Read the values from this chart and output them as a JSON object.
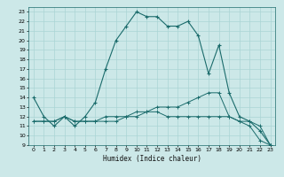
{
  "xlabel": "Humidex (Indice chaleur)",
  "xlim": [
    -0.5,
    23.5
  ],
  "ylim": [
    9,
    23.5
  ],
  "yticks": [
    9,
    10,
    11,
    12,
    13,
    14,
    15,
    16,
    17,
    18,
    19,
    20,
    21,
    22,
    23
  ],
  "xticks": [
    0,
    1,
    2,
    3,
    4,
    5,
    6,
    7,
    8,
    9,
    10,
    11,
    12,
    13,
    14,
    15,
    16,
    17,
    18,
    19,
    20,
    21,
    22,
    23
  ],
  "bg_color": "#cce8e8",
  "line_color": "#1a6b6b",
  "grid_color": "#aad4d4",
  "line1_x": [
    0,
    1,
    2,
    3,
    4,
    5,
    6,
    7,
    8,
    9,
    10,
    11,
    12,
    13,
    14,
    15,
    16,
    17,
    18,
    19,
    20,
    21,
    22,
    23
  ],
  "line1_y": [
    14,
    12,
    11,
    12,
    11,
    12,
    13.5,
    17,
    20,
    21.5,
    23,
    22.5,
    22.5,
    21.5,
    21.5,
    22,
    20.5,
    16.5,
    19.5,
    14.5,
    12,
    11.5,
    10.5,
    9
  ],
  "line2_x": [
    0,
    1,
    2,
    3,
    4,
    5,
    6,
    7,
    8,
    9,
    10,
    11,
    12,
    13,
    14,
    15,
    16,
    17,
    18,
    19,
    20,
    21,
    22,
    23
  ],
  "line2_y": [
    11.5,
    11.5,
    11.5,
    12,
    11.5,
    11.5,
    11.5,
    11.5,
    11.5,
    12,
    12,
    12.5,
    13,
    13,
    13,
    13.5,
    14,
    14.5,
    14.5,
    12,
    11.5,
    11.5,
    11,
    9
  ],
  "line3_x": [
    0,
    1,
    2,
    3,
    4,
    5,
    6,
    7,
    8,
    9,
    10,
    11,
    12,
    13,
    14,
    15,
    16,
    17,
    18,
    19,
    20,
    21,
    22,
    23
  ],
  "line3_y": [
    11.5,
    11.5,
    11.5,
    12,
    11.5,
    11.5,
    11.5,
    12,
    12,
    12,
    12.5,
    12.5,
    12.5,
    12,
    12,
    12,
    12,
    12,
    12,
    12,
    11.5,
    11,
    9.5,
    9
  ]
}
